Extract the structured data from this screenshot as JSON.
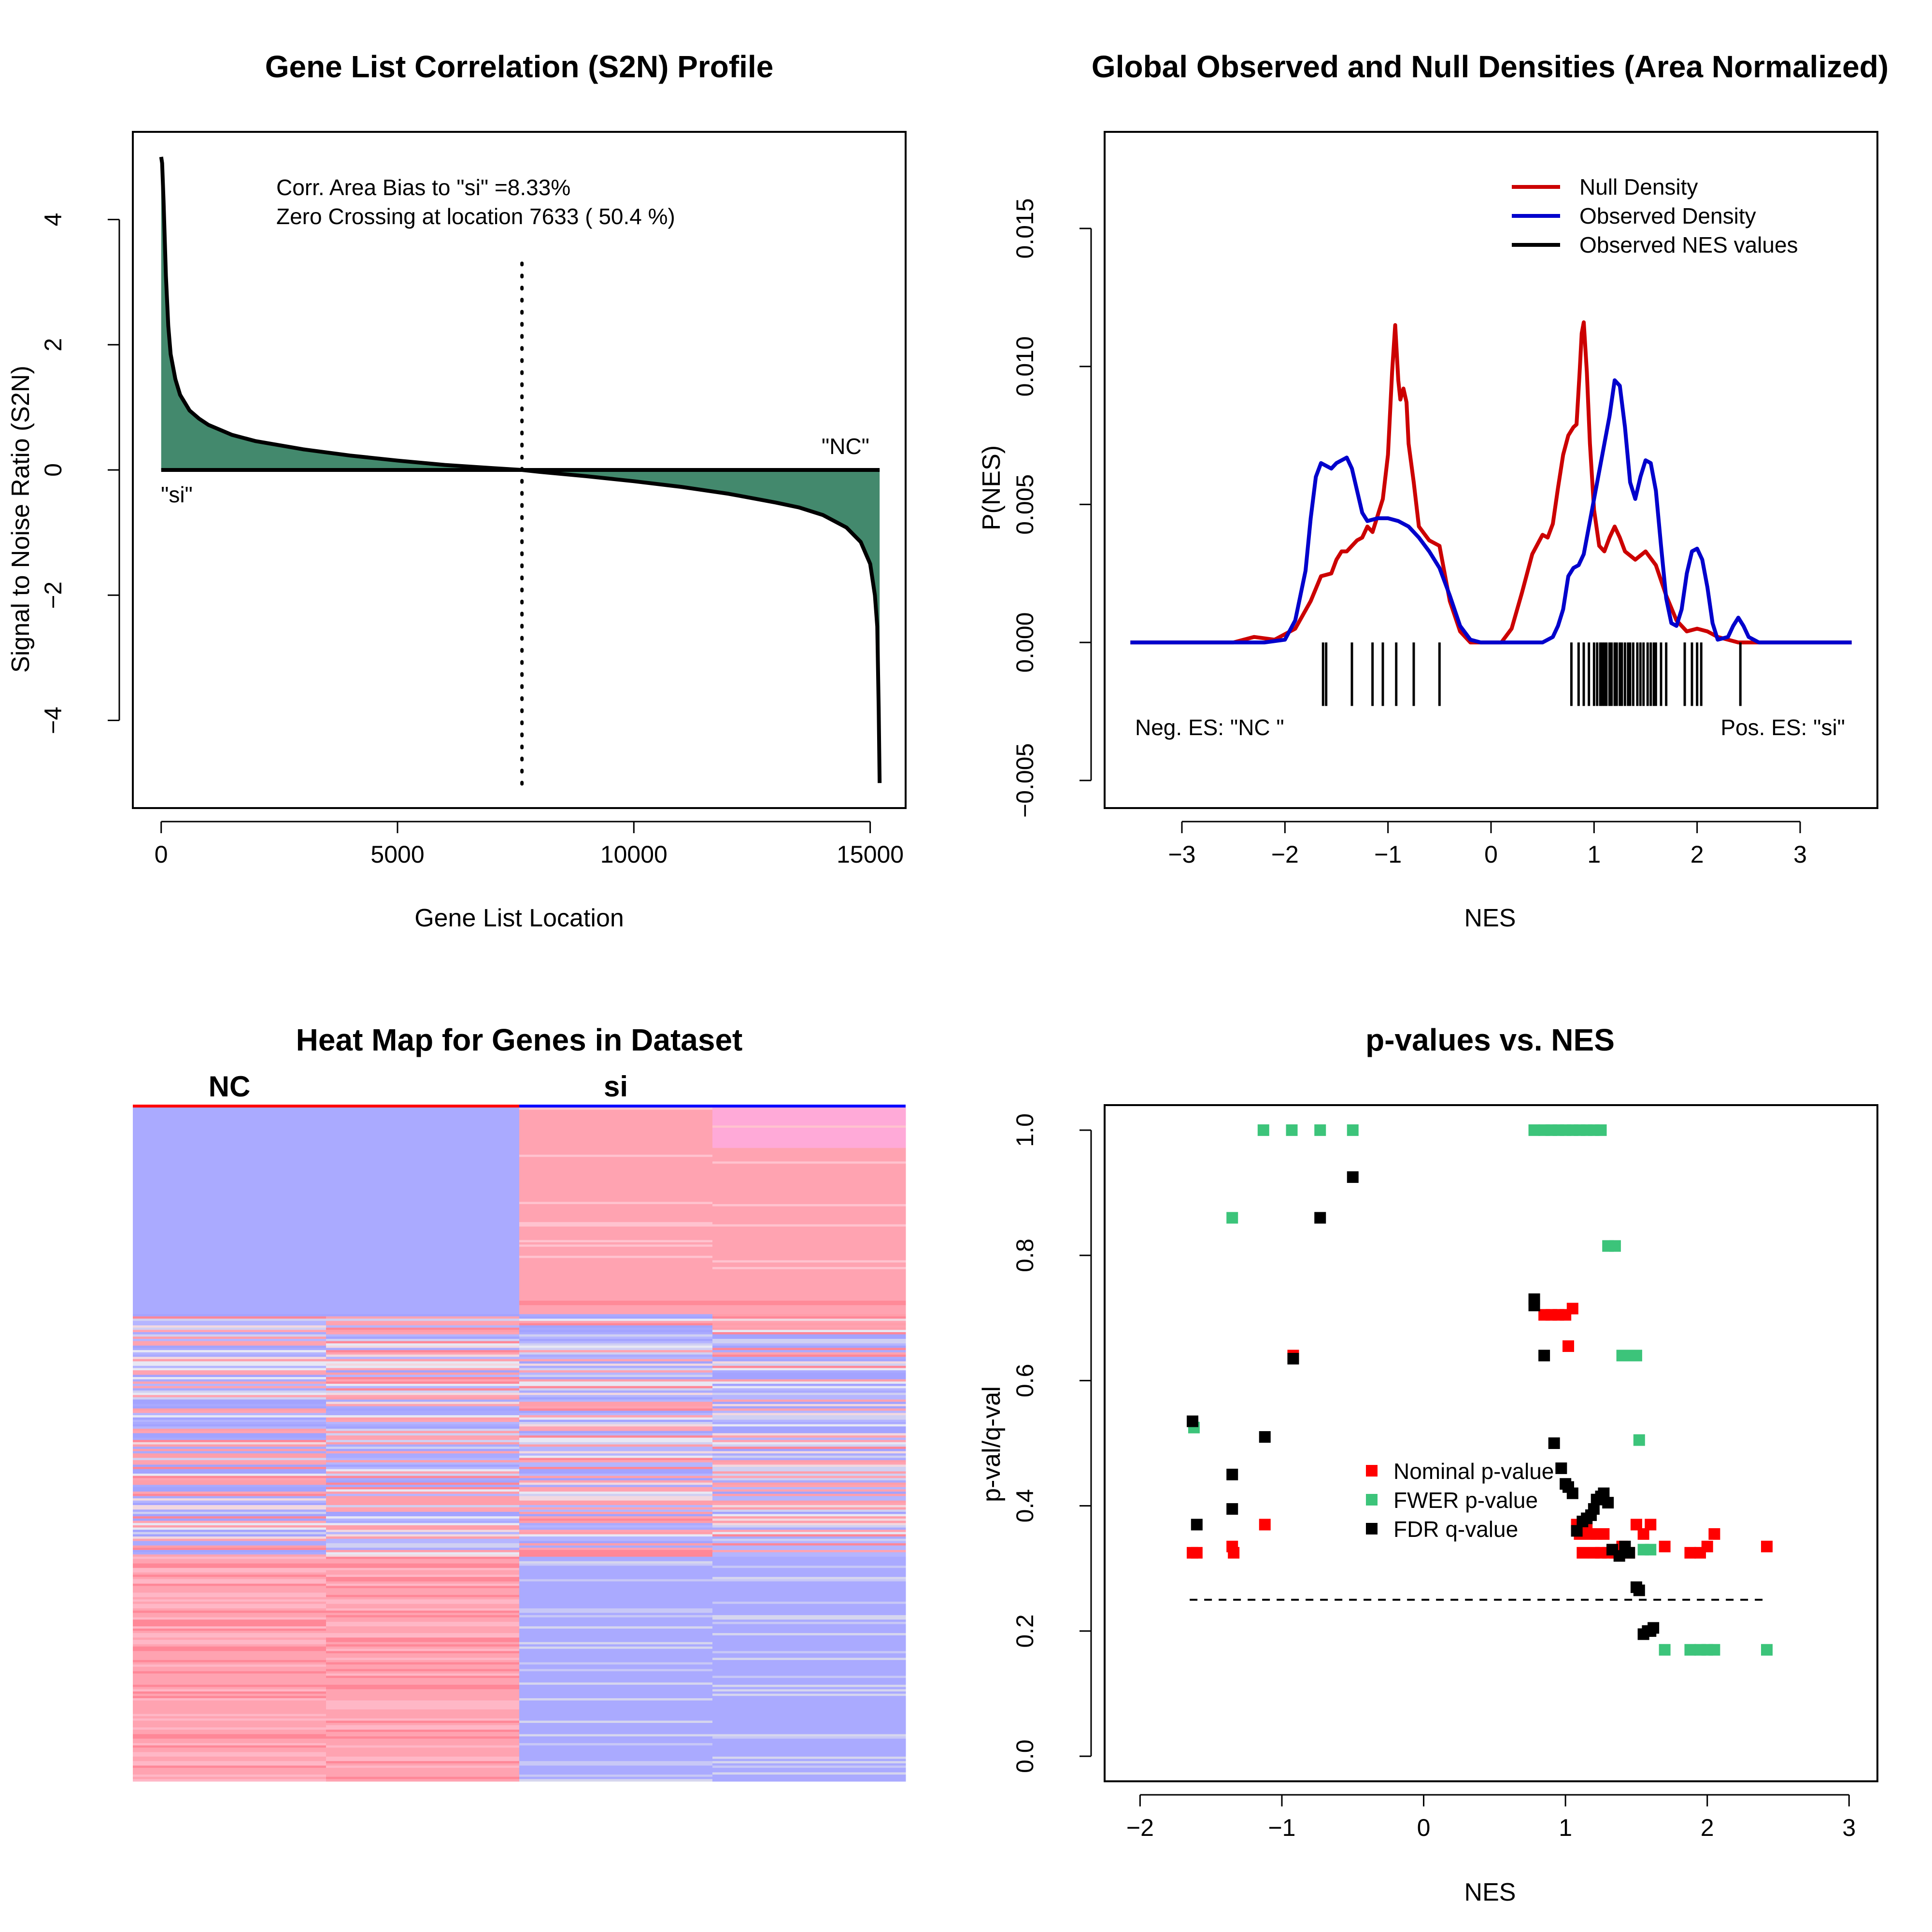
{
  "chart_data": [
    {
      "type": "area",
      "title": "Gene List Correlation (S2N) Profile",
      "xlabel": "Gene List Location",
      "ylabel": "Signal to Noise Ratio (S2N)",
      "xlim": [
        -600,
        15750
      ],
      "ylim": [
        -5.4,
        5.4
      ],
      "xticks": [
        0,
        5000,
        10000,
        15000
      ],
      "xtick_labels": [
        "0",
        "5000",
        "10000",
        "15000"
      ],
      "yticks": [
        -4,
        -2,
        0,
        2,
        4
      ],
      "ytick_labels": [
        "−4",
        "−2",
        "0",
        "2",
        "4"
      ],
      "fill_color": "#43896d",
      "line_color": "#000000",
      "x": [
        0,
        20,
        50,
        100,
        150,
        200,
        300,
        400,
        600,
        800,
        1000,
        1500,
        2000,
        3000,
        4000,
        5000,
        6000,
        7000,
        7633,
        8000,
        9000,
        10000,
        11000,
        12000,
        13000,
        13500,
        14000,
        14500,
        14800,
        15000,
        15100,
        15150,
        15180,
        15200
      ],
      "y": [
        5.0,
        4.9,
        4.3,
        3.1,
        2.3,
        1.85,
        1.45,
        1.2,
        0.95,
        0.82,
        0.72,
        0.56,
        0.46,
        0.33,
        0.23,
        0.15,
        0.08,
        0.03,
        0.0,
        -0.03,
        -0.1,
        -0.18,
        -0.27,
        -0.38,
        -0.52,
        -0.6,
        -0.72,
        -0.92,
        -1.15,
        -1.5,
        -2.0,
        -2.5,
        -3.8,
        -5.0
      ],
      "zero_crossing": 7633,
      "annotations": [
        "Corr. Area Bias to \"si\" =8.33%",
        "Zero Crossing at location  7633  ( 50.4  %)"
      ],
      "label_pos": "\"si\"",
      "label_neg": "\"NC\""
    },
    {
      "type": "line",
      "title": "Global Observed and Null Densities (Area Normalized)",
      "xlabel": "NES",
      "ylabel": "P(NES)",
      "xlim": [
        -3.75,
        3.75
      ],
      "ylim": [
        -0.006,
        0.0185
      ],
      "xticks": [
        -3,
        -2,
        -1,
        0,
        1,
        2,
        3
      ],
      "xtick_labels": [
        "−3",
        "−2",
        "−1",
        "0",
        "1",
        "2",
        "3"
      ],
      "yticks": [
        -0.005,
        0.0,
        0.005,
        0.01,
        0.015
      ],
      "ytick_labels": [
        "−0.005",
        "0.000",
        "0.005",
        "0.010",
        "0.015"
      ],
      "legend": [
        "Null Density",
        "Observed Density",
        "Observed NES values"
      ],
      "legend_colors": [
        "#cc0000",
        "#0000cc",
        "#000000"
      ],
      "legend_position": "top-right",
      "series": [
        {
          "name": "Null Density",
          "x": [
            -3.5,
            -2.5,
            -2.3,
            -2.1,
            -1.9,
            -1.75,
            -1.65,
            -1.55,
            -1.5,
            -1.45,
            -1.4,
            -1.35,
            -1.3,
            -1.25,
            -1.2,
            -1.15,
            -1.1,
            -1.05,
            -1.0,
            -0.96,
            -0.93,
            -0.9,
            -0.88,
            -0.85,
            -0.82,
            -0.8,
            -0.75,
            -0.7,
            -0.6,
            -0.5,
            -0.4,
            -0.3,
            -0.2,
            -0.1,
            0.0,
            0.1,
            0.2,
            0.3,
            0.4,
            0.5,
            0.55,
            0.6,
            0.65,
            0.7,
            0.75,
            0.8,
            0.83,
            0.86,
            0.88,
            0.9,
            0.93,
            0.96,
            1.0,
            1.05,
            1.1,
            1.15,
            1.2,
            1.25,
            1.3,
            1.4,
            1.5,
            1.6,
            1.7,
            1.8,
            1.9,
            2.0,
            2.1,
            2.2,
            2.4,
            2.6,
            3.5
          ],
          "y": [
            0.0,
            0.0,
            0.0002,
            0.0001,
            0.0005,
            0.0015,
            0.0024,
            0.0025,
            0.003,
            0.0033,
            0.0033,
            0.0035,
            0.0037,
            0.0038,
            0.0042,
            0.004,
            0.0046,
            0.0052,
            0.0068,
            0.0098,
            0.0115,
            0.0095,
            0.0088,
            0.0092,
            0.0087,
            0.0072,
            0.0058,
            0.0042,
            0.0037,
            0.0035,
            0.0015,
            0.0004,
            0.0,
            0.0,
            0.0,
            0.0,
            0.0005,
            0.0018,
            0.0032,
            0.0039,
            0.0038,
            0.0043,
            0.0056,
            0.0068,
            0.0075,
            0.0078,
            0.0079,
            0.0098,
            0.0112,
            0.0116,
            0.0098,
            0.0072,
            0.0048,
            0.0035,
            0.0033,
            0.0038,
            0.0042,
            0.0038,
            0.0033,
            0.003,
            0.0033,
            0.0028,
            0.0017,
            0.0008,
            0.0004,
            0.0005,
            0.0004,
            0.0002,
            0.0,
            0.0,
            0.0
          ]
        },
        {
          "name": "Observed Density",
          "x": [
            -3.5,
            -2.2,
            -2.0,
            -1.9,
            -1.8,
            -1.75,
            -1.7,
            -1.65,
            -1.6,
            -1.55,
            -1.5,
            -1.45,
            -1.4,
            -1.35,
            -1.3,
            -1.25,
            -1.2,
            -1.1,
            -1.0,
            -0.9,
            -0.8,
            -0.7,
            -0.6,
            -0.5,
            -0.4,
            -0.3,
            -0.2,
            -0.1,
            0.0,
            0.3,
            0.5,
            0.6,
            0.65,
            0.7,
            0.75,
            0.8,
            0.85,
            0.9,
            0.95,
            1.0,
            1.05,
            1.1,
            1.15,
            1.2,
            1.25,
            1.3,
            1.35,
            1.4,
            1.45,
            1.5,
            1.55,
            1.6,
            1.65,
            1.7,
            1.75,
            1.8,
            1.85,
            1.9,
            1.95,
            2.0,
            2.05,
            2.1,
            2.15,
            2.2,
            2.3,
            2.35,
            2.4,
            2.45,
            2.5,
            2.6,
            3.5
          ],
          "y": [
            0.0,
            0.0,
            0.0001,
            0.0008,
            0.0026,
            0.0045,
            0.006,
            0.0065,
            0.0064,
            0.0063,
            0.0065,
            0.0066,
            0.0067,
            0.0063,
            0.0055,
            0.0047,
            0.0044,
            0.0045,
            0.0045,
            0.0044,
            0.0042,
            0.0038,
            0.0033,
            0.0027,
            0.0017,
            0.0006,
            0.0001,
            0.0,
            0.0,
            0.0,
            0.0,
            0.0002,
            0.0006,
            0.0012,
            0.0024,
            0.0027,
            0.0028,
            0.0032,
            0.0042,
            0.0052,
            0.0062,
            0.0072,
            0.0082,
            0.0095,
            0.0093,
            0.0078,
            0.0058,
            0.0052,
            0.006,
            0.0066,
            0.0065,
            0.0055,
            0.0035,
            0.0016,
            0.0007,
            0.0006,
            0.0012,
            0.0025,
            0.0033,
            0.0034,
            0.003,
            0.002,
            0.0007,
            0.0001,
            0.0002,
            0.0006,
            0.0009,
            0.0006,
            0.0002,
            0.0,
            0.0
          ]
        }
      ],
      "rug": [
        -1.63,
        -1.6,
        -1.35,
        -1.15,
        -1.05,
        -0.92,
        -0.75,
        -0.5,
        0.78,
        0.85,
        0.9,
        0.95,
        1.0,
        1.03,
        1.06,
        1.08,
        1.1,
        1.12,
        1.15,
        1.17,
        1.2,
        1.22,
        1.25,
        1.27,
        1.3,
        1.33,
        1.35,
        1.38,
        1.42,
        1.45,
        1.48,
        1.52,
        1.55,
        1.58,
        1.6,
        1.65,
        1.7,
        1.88,
        1.95,
        2.0,
        2.04,
        2.42
      ],
      "annotations": [
        "Neg. ES: \"NC \"",
        "Pos. ES: \"si\""
      ]
    },
    {
      "type": "heatmap",
      "title": "Heat Map for Genes in Dataset",
      "groups": [
        "NC",
        "si"
      ],
      "group_colors": [
        "#ff0000",
        "#0000ff"
      ],
      "columns": 4,
      "blocks": [
        {
          "rows": 36,
          "pattern": "blue-blue-red-red"
        },
        {
          "rows": 36,
          "pattern": "mixed"
        },
        {
          "rows": 36,
          "pattern": "red-red-blue-blue"
        }
      ]
    },
    {
      "type": "scatter",
      "title": "p-values vs. NES",
      "xlabel": "NES",
      "ylabel": "p-val/q-val",
      "xlim": [
        -2.25,
        3.2
      ],
      "ylim": [
        -0.04,
        1.04
      ],
      "xticks": [
        -2,
        -1,
        0,
        1,
        2,
        3
      ],
      "xtick_labels": [
        "−2",
        "−1",
        "0",
        "1",
        "2",
        "3"
      ],
      "yticks": [
        0.0,
        0.2,
        0.4,
        0.6,
        0.8,
        1.0
      ],
      "ytick_labels": [
        "0.0",
        "0.2",
        "0.4",
        "0.6",
        "0.8",
        "1.0"
      ],
      "threshold": 0.25,
      "threshold_range": [
        -1.65,
        2.42
      ],
      "legend": [
        "Nominal p-value",
        "FWER p-value",
        "FDR q-value"
      ],
      "legend_colors": [
        "#ff0000",
        "#3cc47a",
        "#000000"
      ],
      "legend_position": "center",
      "series": [
        {
          "name": "Nominal p-value",
          "x": [
            -1.63,
            -1.6,
            -1.35,
            -1.34,
            -0.92,
            -1.12,
            0.85,
            0.9,
            0.95,
            1.0,
            1.02,
            1.05,
            1.08,
            1.1,
            1.12,
            1.15,
            1.18,
            1.2,
            1.22,
            1.25,
            1.27,
            1.3,
            1.35,
            1.4,
            1.45,
            1.5,
            1.55,
            1.6,
            1.7,
            1.88,
            1.95,
            2.0,
            2.05,
            2.42
          ],
          "y": [
            0.325,
            0.325,
            0.335,
            0.325,
            0.64,
            0.37,
            0.705,
            0.705,
            0.705,
            0.705,
            0.655,
            0.715,
            0.37,
            0.355,
            0.325,
            0.37,
            0.355,
            0.325,
            0.355,
            0.325,
            0.355,
            0.325,
            0.325,
            0.335,
            0.325,
            0.37,
            0.355,
            0.37,
            0.335,
            0.325,
            0.325,
            0.335,
            0.355,
            0.335
          ]
        },
        {
          "name": "FWER p-value",
          "x": [
            -1.62,
            -1.35,
            -1.13,
            -0.93,
            -0.73,
            -0.5,
            0.78,
            0.85,
            0.9,
            0.95,
            1.0,
            1.05,
            1.1,
            1.15,
            1.2,
            1.25,
            1.3,
            1.35,
            1.4,
            1.45,
            1.5,
            1.52,
            1.55,
            1.6,
            1.7,
            1.88,
            1.95,
            2.0,
            2.05,
            2.42
          ],
          "y": [
            0.525,
            0.86,
            1.0,
            1.0,
            1.0,
            1.0,
            1.0,
            1.0,
            1.0,
            1.0,
            1.0,
            1.0,
            1.0,
            1.0,
            1.0,
            1.0,
            0.815,
            0.815,
            0.64,
            0.64,
            0.64,
            0.505,
            0.33,
            0.33,
            0.17,
            0.17,
            0.17,
            0.17,
            0.17,
            0.17
          ]
        },
        {
          "name": "FDR q-value",
          "x": [
            -1.63,
            -1.6,
            -1.35,
            -1.35,
            -1.12,
            -0.92,
            -0.73,
            -0.5,
            0.78,
            0.78,
            0.85,
            0.92,
            0.97,
            1.0,
            1.02,
            1.05,
            1.08,
            1.12,
            1.15,
            1.18,
            1.2,
            1.22,
            1.25,
            1.27,
            1.3,
            1.33,
            1.38,
            1.42,
            1.45,
            1.5,
            1.52,
            1.55,
            1.58,
            1.6,
            1.62
          ],
          "y": [
            0.535,
            0.37,
            0.45,
            0.395,
            0.51,
            0.635,
            0.86,
            0.925,
            0.73,
            0.72,
            0.64,
            0.5,
            0.46,
            0.435,
            0.43,
            0.42,
            0.36,
            0.375,
            0.38,
            0.385,
            0.395,
            0.41,
            0.415,
            0.42,
            0.405,
            0.33,
            0.32,
            0.335,
            0.325,
            0.27,
            0.265,
            0.195,
            0.2,
            0.2,
            0.205
          ]
        }
      ]
    }
  ]
}
